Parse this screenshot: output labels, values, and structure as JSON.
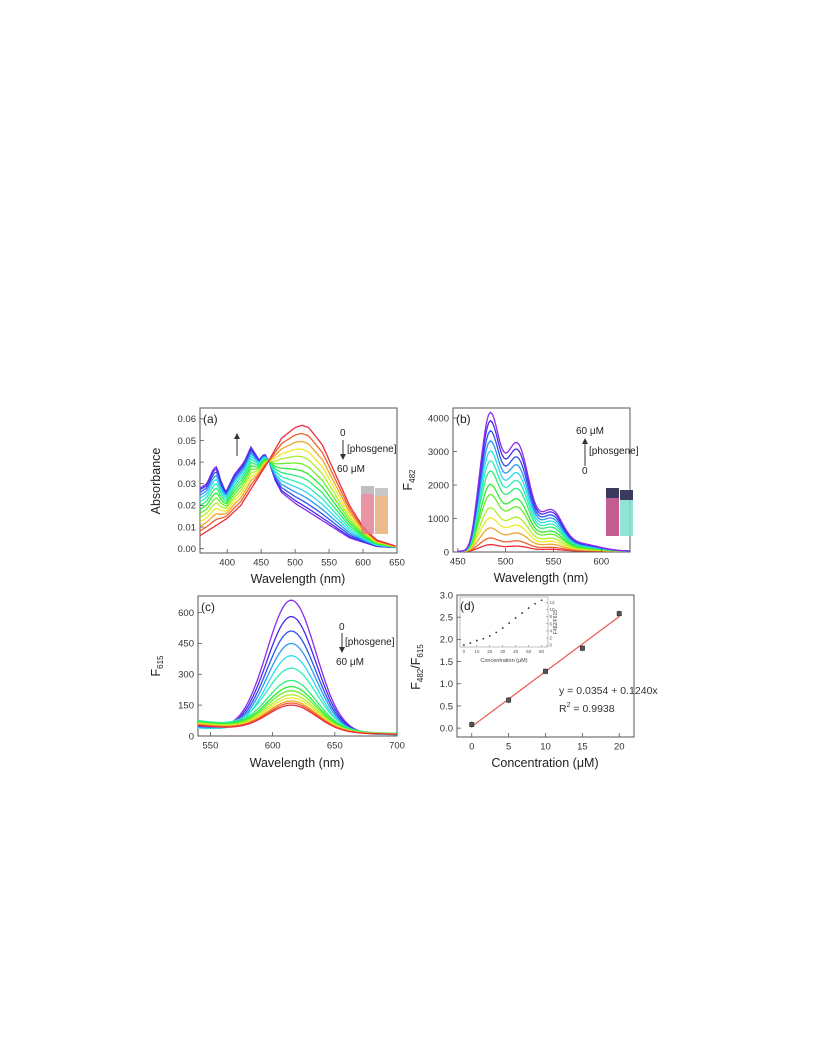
{
  "chart_data": [
    {
      "panel": "(a)",
      "type": "line",
      "xlabel": "Wavelength (nm)",
      "ylabel": "Absorbance",
      "xlim": [
        360,
        650
      ],
      "ylim": [
        -0.002,
        0.065
      ],
      "xticks": [
        400,
        450,
        500,
        550,
        600,
        650
      ],
      "yticks": [
        0.0,
        0.01,
        0.02,
        0.03,
        0.04,
        0.05,
        0.06
      ],
      "ytick_labels": [
        "0.00",
        "0.01",
        "0.02",
        "0.03",
        "0.04",
        "0.05",
        "0.06"
      ],
      "grid": false,
      "annotations": {
        "top": "0",
        "reagent": "[phosgene]",
        "bottom": "60 μM",
        "direction": "down"
      },
      "series_count": 14,
      "first_series": {
        "x": [
          360,
          370,
          380,
          385,
          390,
          398,
          410,
          425,
          435,
          447,
          455,
          462,
          470,
          480,
          500,
          520,
          540,
          560,
          580,
          600,
          620,
          650
        ],
        "y": [
          0.028,
          0.03,
          0.037,
          0.038,
          0.032,
          0.026,
          0.034,
          0.04,
          0.047,
          0.041,
          0.044,
          0.04,
          0.032,
          0.026,
          0.021,
          0.017,
          0.013,
          0.009,
          0.005,
          0.003,
          0.001,
          0.0005
        ]
      },
      "last_series": {
        "x": [
          360,
          370,
          380,
          390,
          400,
          420,
          440,
          460,
          480,
          500,
          510,
          520,
          540,
          560,
          580,
          600,
          620,
          650
        ],
        "y": [
          0.006,
          0.008,
          0.01,
          0.012,
          0.014,
          0.02,
          0.03,
          0.04,
          0.051,
          0.056,
          0.057,
          0.056,
          0.048,
          0.034,
          0.02,
          0.01,
          0.004,
          0.001
        ]
      },
      "inset": "vials photo"
    },
    {
      "panel": "(b)",
      "type": "line",
      "xlabel": "Wavelength (nm)",
      "ylabel": "F",
      "ylabel_sub": "482",
      "xlim": [
        445,
        630
      ],
      "ylim": [
        0,
        4300
      ],
      "xticks": [
        450,
        500,
        550,
        600
      ],
      "yticks": [
        0,
        1000,
        2000,
        3000,
        4000
      ],
      "grid": false,
      "annotations": {
        "top": "60 μM",
        "reagent": "[phosgene]",
        "bottom": "0",
        "direction": "up"
      },
      "series_count": 14,
      "peak_values": [
        200,
        400,
        700,
        1000,
        1300,
        1700,
        2000,
        2400,
        2700,
        3000,
        3300,
        3600,
        3900,
        4150
      ],
      "inset": "vials photo"
    },
    {
      "panel": "(c)",
      "type": "line",
      "xlabel": "Wavelength (nm)",
      "ylabel": "F",
      "ylabel_sub": "615",
      "xlim": [
        540,
        700
      ],
      "ylim": [
        0,
        680
      ],
      "xticks": [
        550,
        600,
        650,
        700
      ],
      "yticks": [
        0,
        150,
        300,
        450,
        600
      ],
      "grid": false,
      "annotations": {
        "top": "0",
        "reagent": "[phosgene]",
        "bottom": "60 μM",
        "direction": "down"
      },
      "series_count": 14,
      "peak_values": [
        660,
        580,
        510,
        450,
        390,
        330,
        270,
        240,
        220,
        200,
        185,
        170,
        160,
        150
      ]
    },
    {
      "panel": "(d)",
      "type": "scatter",
      "xlabel": "Concentration (μM)",
      "ylabel": "F",
      "ylabel_sub1": "482",
      "ylabel_mid": "/F",
      "ylabel_sub2": "615",
      "xlim": [
        -2,
        22
      ],
      "ylim": [
        -0.2,
        3.0
      ],
      "xticks": [
        0,
        5,
        10,
        15,
        20
      ],
      "yticks": [
        0.0,
        0.5,
        1.0,
        1.5,
        2.0,
        2.5,
        3.0
      ],
      "ytick_labels": [
        "0.0",
        "0.5",
        "1.0",
        "1.5",
        "2.0",
        "2.5",
        "3.0"
      ],
      "grid": false,
      "x": [
        0,
        5,
        10,
        15,
        20
      ],
      "y": [
        0.08,
        0.63,
        1.28,
        1.8,
        2.58
      ],
      "fit": {
        "slope": 0.124,
        "intercept": 0.0354
      },
      "equation": "y = 0.0354 + 0.1240x",
      "r2_prefix": "R",
      "r2_sup": "2",
      "r2_value": " = 0.9938",
      "inset": {
        "xlabel": "Concentration (μM)",
        "ylabel": "F482/F615",
        "x": [
          0,
          5,
          10,
          15,
          20,
          25,
          30,
          35,
          40,
          45,
          50,
          55,
          60
        ],
        "y": [
          0.1,
          0.6,
          1.3,
          1.8,
          2.6,
          3.6,
          4.8,
          6.2,
          7.6,
          9.0,
          10.4,
          11.6,
          12.6
        ],
        "xticks": [
          0,
          10,
          20,
          30,
          40,
          50,
          60
        ],
        "yticks": [
          0,
          2,
          4,
          6,
          8,
          10,
          12
        ],
        "xlim": [
          -3,
          65
        ],
        "ylim": [
          -0.5,
          13.5
        ]
      }
    }
  ]
}
